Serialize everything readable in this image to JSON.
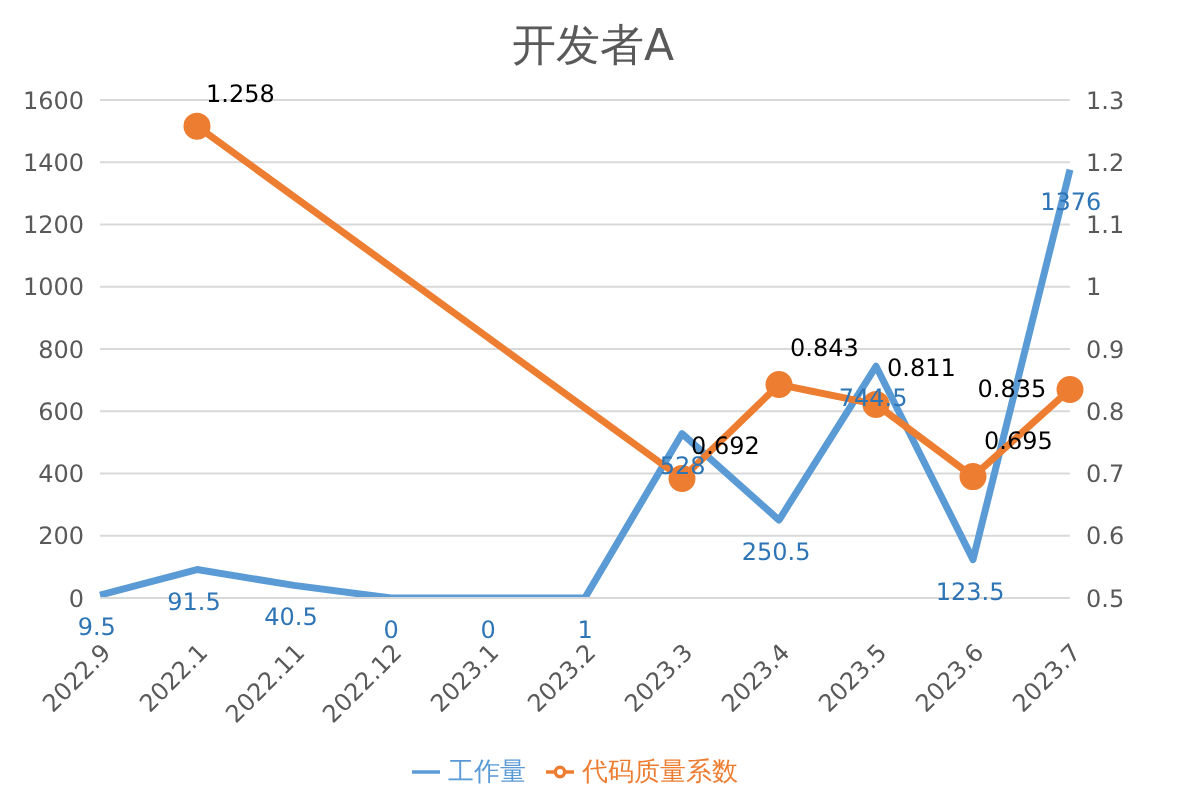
{
  "chart_data": {
    "type": "line",
    "title": "开发者A",
    "categories": [
      "2022.9",
      "2022.1",
      "2022.11",
      "2022.12",
      "2023.1",
      "2023.2",
      "2023.3",
      "2023.4",
      "2023.5",
      "2023.6",
      "2023.7"
    ],
    "series": [
      {
        "name": "工作量",
        "color": "#5b9bd5",
        "values": [
          9.5,
          91.5,
          40.5,
          0,
          0,
          1,
          528,
          250.5,
          744.5,
          123.5,
          1376
        ],
        "marker": "none"
      },
      {
        "name": "代码质量系数",
        "color": "#ed7d31",
        "axis": "y2",
        "marker": "circle",
        "values": [
          null,
          1.258,
          null,
          null,
          null,
          null,
          0.692,
          0.843,
          0.811,
          0.695,
          0.835
        ]
      }
    ],
    "ylim": [
      0,
      1600
    ],
    "yticks": [
      0,
      200,
      400,
      600,
      800,
      1000,
      1200,
      1400,
      1600
    ],
    "y2lim": [
      0.5,
      1.3
    ],
    "y2ticks": [
      0.5,
      0.6,
      0.7,
      0.8,
      0.9,
      1,
      1.1,
      1.2,
      1.3
    ],
    "grid": "y",
    "legend": "bottom",
    "data_labels": true
  }
}
